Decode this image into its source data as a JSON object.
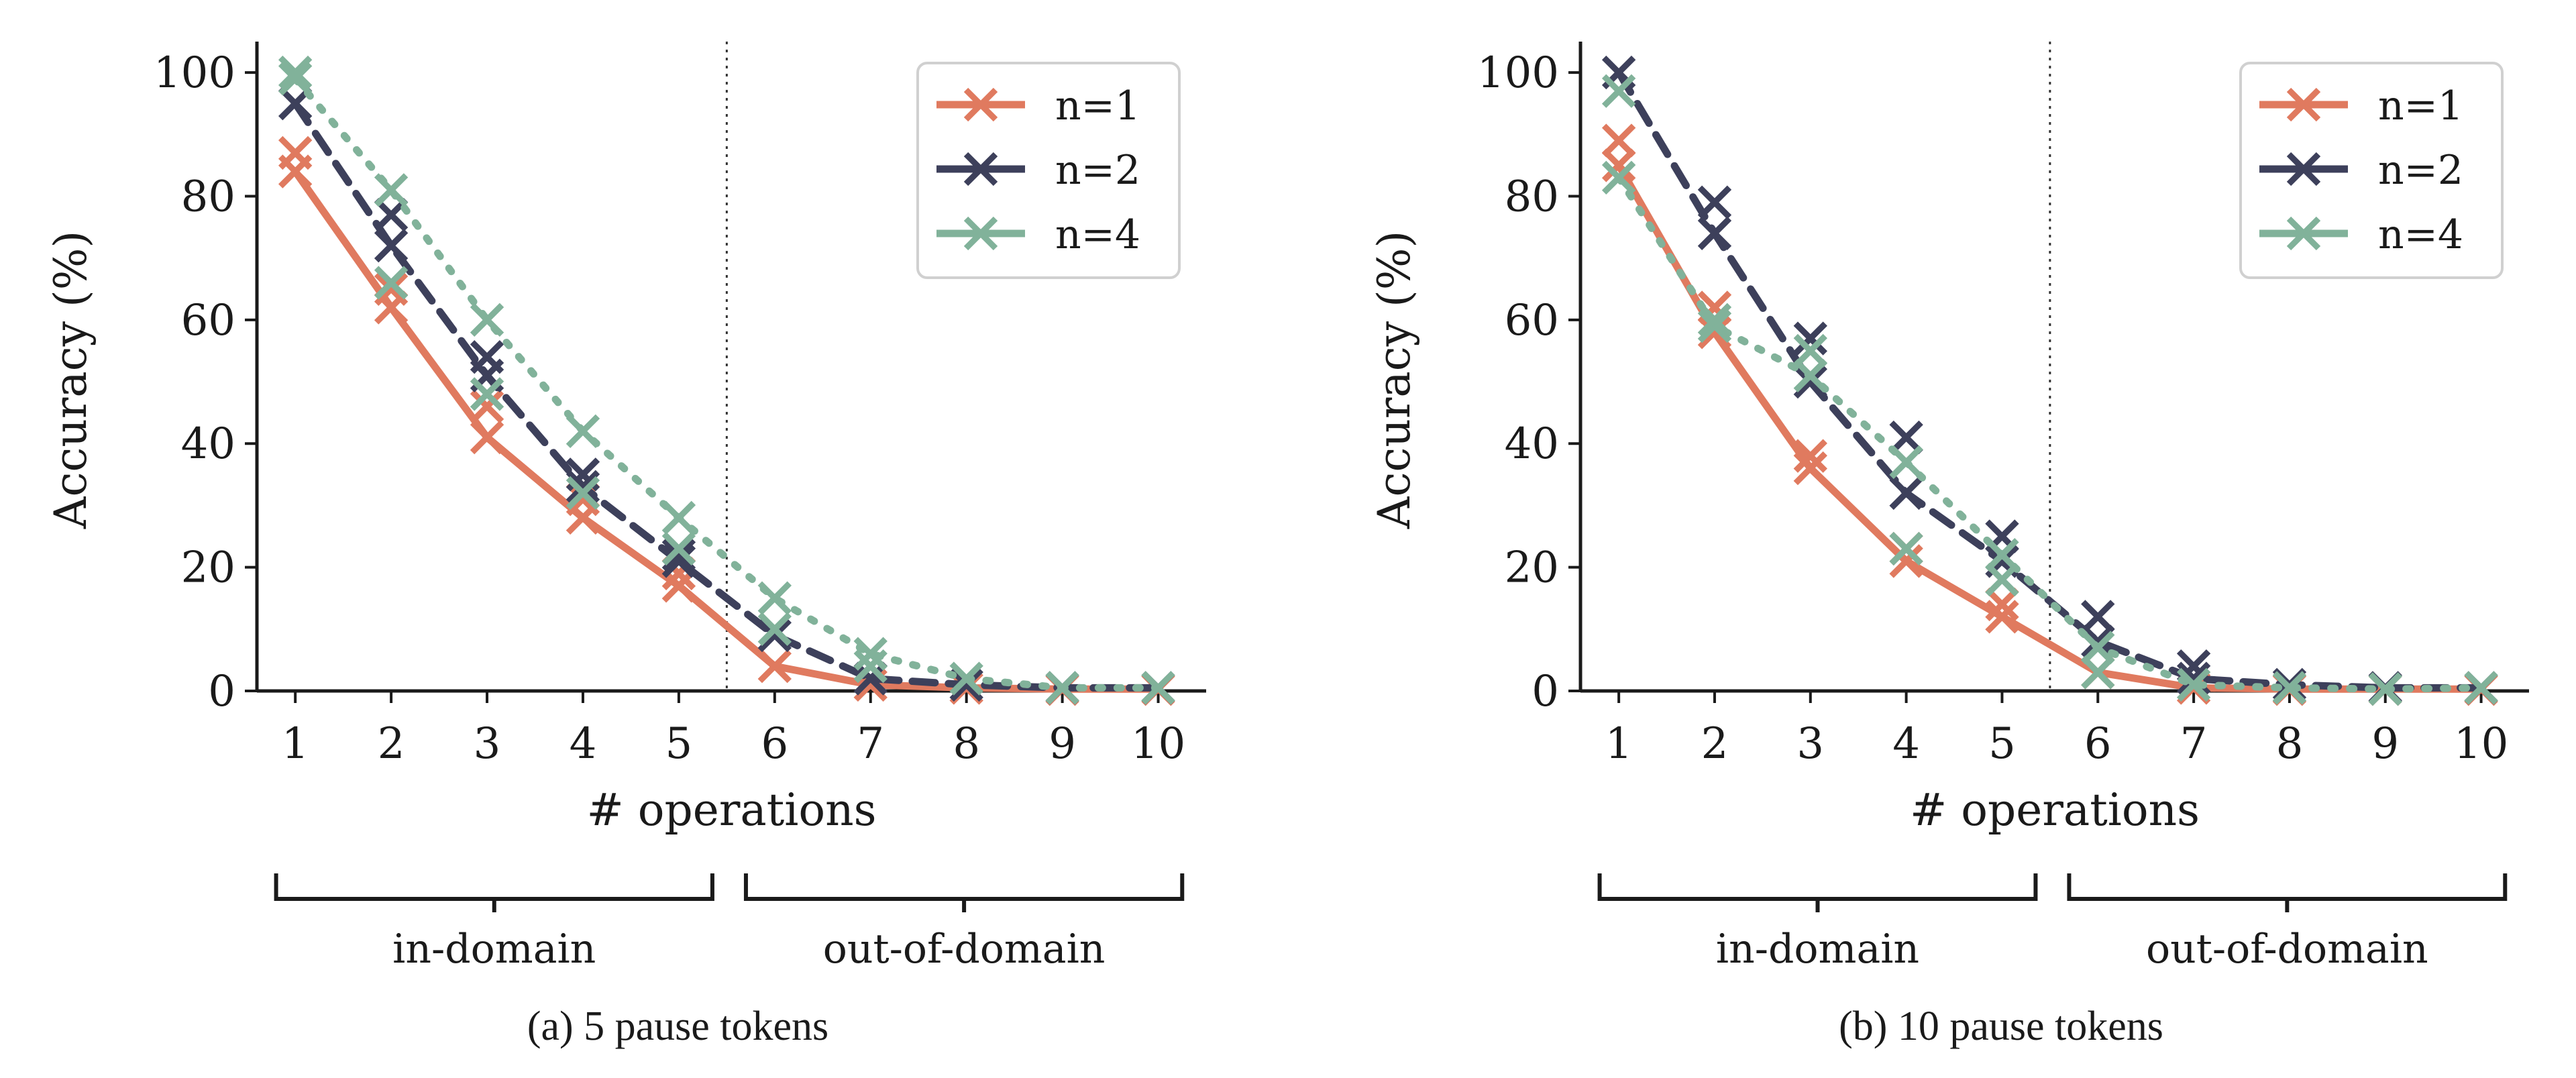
{
  "colors": {
    "n1": "#e07a5f",
    "n2": "#3d405b",
    "n4": "#81b29a"
  },
  "chart_data": [
    {
      "type": "line",
      "caption": "(a) 5 pause tokens",
      "xlabel": "# operations",
      "ylabel": "Accuracy (%)",
      "x": [
        1,
        2,
        3,
        4,
        5,
        6,
        7,
        8,
        9,
        10
      ],
      "xlim": [
        0.6,
        10.5
      ],
      "ylim": [
        0,
        105
      ],
      "yticks": [
        0,
        20,
        40,
        60,
        80,
        100
      ],
      "divider_x": 5.5,
      "legend": "top-right",
      "grid": false,
      "domain_labels": [
        "in-domain",
        "out-of-domain"
      ],
      "series": [
        {
          "name": "n=1",
          "style": "solid",
          "values": [
            84,
            62,
            41,
            28,
            17,
            4,
            1,
            0.5,
            0.3,
            0.3
          ],
          "extra": [
            [
              1,
              87
            ],
            [
              2,
              65
            ],
            [
              3,
              46
            ],
            [
              4,
              31
            ],
            [
              5,
              19
            ]
          ]
        },
        {
          "name": "n=2",
          "style": "dashed",
          "values": [
            95,
            72,
            51,
            33,
            21,
            9,
            2,
            1,
            0.5,
            0.5
          ],
          "extra": [
            [
              2,
              77
            ],
            [
              3,
              54
            ],
            [
              4,
              35
            ],
            [
              5,
              22
            ]
          ]
        },
        {
          "name": "n=4",
          "style": "dotted",
          "values": [
            99,
            81,
            60,
            42,
            28,
            15,
            6,
            2,
            0.5,
            0.5
          ],
          "extra": [
            [
              1,
              100
            ],
            [
              2,
              66
            ],
            [
              3,
              48
            ],
            [
              4,
              32
            ],
            [
              5,
              23
            ],
            [
              6,
              10
            ],
            [
              7,
              4
            ]
          ]
        }
      ]
    },
    {
      "type": "line",
      "caption": "(b) 10 pause tokens",
      "xlabel": "# operations",
      "ylabel": "Accuracy (%)",
      "x": [
        1,
        2,
        3,
        4,
        5,
        6,
        7,
        8,
        9,
        10
      ],
      "xlim": [
        0.6,
        10.5
      ],
      "ylim": [
        0,
        105
      ],
      "yticks": [
        0,
        20,
        40,
        60,
        80,
        100
      ],
      "divider_x": 5.5,
      "legend": "top-right",
      "grid": false,
      "domain_labels": [
        "in-domain",
        "out-of-domain"
      ],
      "series": [
        {
          "name": "n=1",
          "style": "solid",
          "values": [
            85,
            58,
            36,
            21,
            12,
            3,
            0.5,
            0.3,
            0.3,
            0.3
          ],
          "extra": [
            [
              1,
              89
            ],
            [
              2,
              62
            ],
            [
              3,
              38
            ],
            [
              4,
              23
            ],
            [
              5,
              14
            ]
          ]
        },
        {
          "name": "n=2",
          "style": "dashed",
          "values": [
            100,
            74,
            50,
            32,
            21,
            8,
            2,
            1,
            0.5,
            0.5
          ],
          "extra": [
            [
              2,
              79
            ],
            [
              3,
              57
            ],
            [
              4,
              41
            ],
            [
              5,
              25
            ],
            [
              6,
              12
            ],
            [
              7,
              4
            ]
          ]
        },
        {
          "name": "n=4",
          "style": "dotted",
          "values": [
            83,
            59,
            51,
            37,
            22,
            7,
            1,
            0.5,
            0.3,
            0.5
          ],
          "extra": [
            [
              1,
              97
            ],
            [
              2,
              60
            ],
            [
              3,
              55
            ],
            [
              4,
              23
            ],
            [
              5,
              18
            ],
            [
              6,
              3
            ]
          ]
        }
      ]
    }
  ]
}
